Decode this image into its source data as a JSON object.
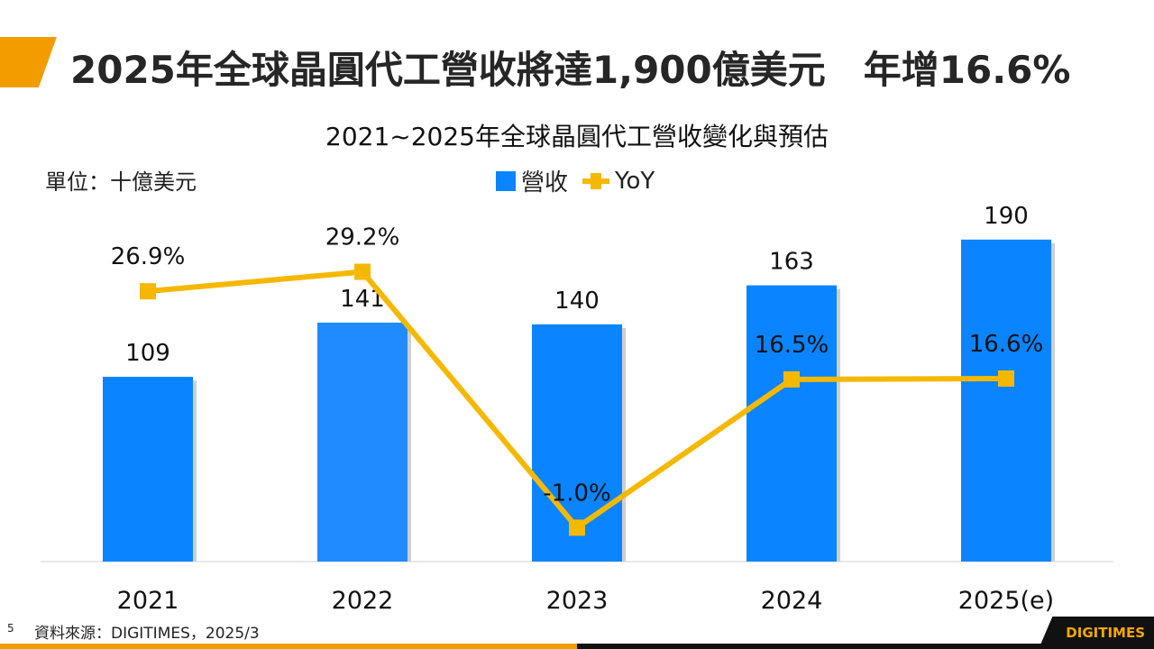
{
  "header": {
    "title": "2025年全球晶圓代工營收將達1,900億美元　年增16.6%",
    "accent_color": "#f39c00"
  },
  "footer": {
    "page_number": "5",
    "source": "資料來源：DIGITIMES，2025/3",
    "logo": "DIGITIMES"
  },
  "chart_data": {
    "type": "bar+line",
    "title": "2021~2025年全球晶圓代工營收變化與預估",
    "unit_label": "單位：十億美元",
    "categories": [
      "2021",
      "2022",
      "2023",
      "2024",
      "2025(e)"
    ],
    "legend_position": "top",
    "grid": false,
    "series": [
      {
        "name": "營收",
        "type": "bar",
        "color": "#0a84ff",
        "values": [
          109,
          141,
          140,
          163,
          190
        ],
        "labels": [
          "109",
          "141",
          "140",
          "163",
          "190"
        ]
      },
      {
        "name": "YoY",
        "type": "line",
        "color": "#f5b800",
        "values": [
          26.9,
          29.2,
          -1.0,
          16.5,
          16.6
        ],
        "labels": [
          "26.9%",
          "29.2%",
          "-1.0%",
          "16.5%",
          "16.6%"
        ]
      }
    ]
  }
}
